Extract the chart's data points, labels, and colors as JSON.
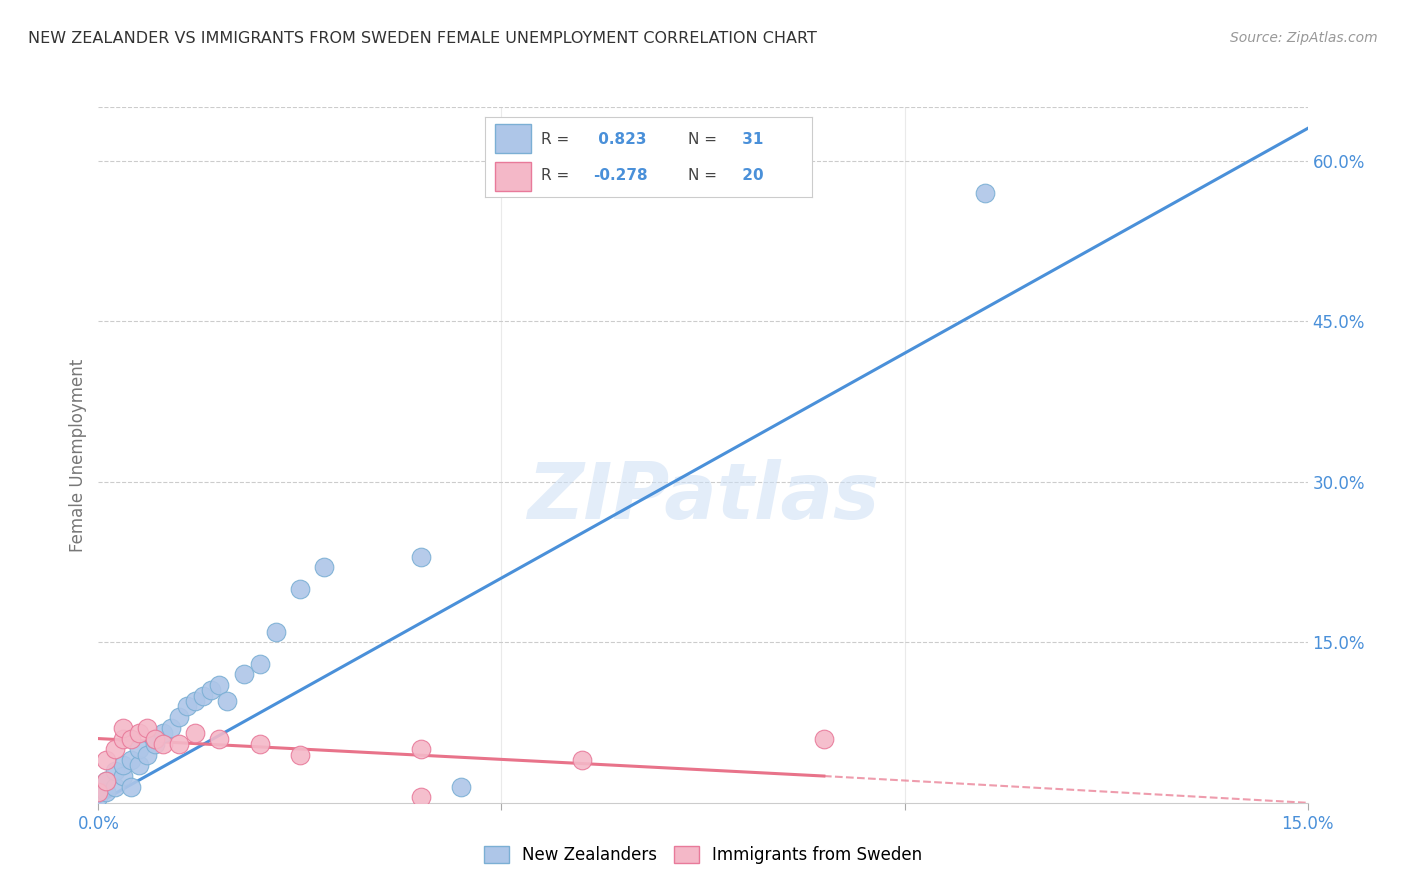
{
  "title": "NEW ZEALANDER VS IMMIGRANTS FROM SWEDEN FEMALE UNEMPLOYMENT CORRELATION CHART",
  "source": "Source: ZipAtlas.com",
  "ylabel": "Female Unemployment",
  "r_nz": 0.823,
  "n_nz": 31,
  "r_sw": -0.278,
  "n_sw": 20,
  "xlim": [
    0,
    0.15
  ],
  "ylim": [
    0,
    0.65
  ],
  "yticks_right": [
    0.15,
    0.3,
    0.45,
    0.6
  ],
  "ytick_labels_right": [
    "15.0%",
    "30.0%",
    "45.0%",
    "60.0%"
  ],
  "xticks": [
    0.0,
    0.05,
    0.1,
    0.15
  ],
  "xtick_labels": [
    "0.0%",
    "",
    "",
    "15.0%"
  ],
  "nz_x": [
    0.0,
    0.001,
    0.001,
    0.002,
    0.002,
    0.003,
    0.003,
    0.004,
    0.004,
    0.005,
    0.005,
    0.006,
    0.007,
    0.007,
    0.008,
    0.009,
    0.01,
    0.011,
    0.012,
    0.013,
    0.014,
    0.015,
    0.016,
    0.018,
    0.02,
    0.022,
    0.025,
    0.028,
    0.04,
    0.11,
    0.045
  ],
  "nz_y": [
    0.005,
    0.01,
    0.02,
    0.015,
    0.03,
    0.025,
    0.035,
    0.015,
    0.04,
    0.035,
    0.05,
    0.045,
    0.055,
    0.06,
    0.065,
    0.07,
    0.08,
    0.09,
    0.095,
    0.1,
    0.105,
    0.11,
    0.095,
    0.12,
    0.13,
    0.16,
    0.2,
    0.22,
    0.23,
    0.57,
    0.015
  ],
  "sw_x": [
    0.0,
    0.001,
    0.001,
    0.002,
    0.003,
    0.003,
    0.004,
    0.005,
    0.006,
    0.007,
    0.008,
    0.01,
    0.012,
    0.015,
    0.02,
    0.025,
    0.04,
    0.06,
    0.09,
    0.04
  ],
  "sw_y": [
    0.01,
    0.02,
    0.04,
    0.05,
    0.06,
    0.07,
    0.06,
    0.065,
    0.07,
    0.06,
    0.055,
    0.055,
    0.065,
    0.06,
    0.055,
    0.045,
    0.05,
    0.04,
    0.06,
    0.005
  ],
  "blue_line_x": [
    0.0,
    0.15
  ],
  "blue_line_y": [
    0.0,
    0.63
  ],
  "pink_line_x0": 0.0,
  "pink_line_x1": 0.09,
  "pink_line_x2": 0.15,
  "pink_line_y0": 0.06,
  "pink_line_y1": 0.025,
  "pink_line_y2": 0.0,
  "watermark": "ZIPatlas",
  "blue_color": "#4a90d9",
  "pink_color": "#e8738a",
  "scatter_blue": "#aec6e8",
  "scatter_pink": "#f4b8c8",
  "scatter_blue_edge": "#7bafd4",
  "scatter_pink_edge": "#e87a9a",
  "grid_color": "#cccccc",
  "bg_color": "#ffffff",
  "title_color": "#333333",
  "source_color": "#999999",
  "axis_color": "#4a90d9",
  "ylabel_color": "#777777"
}
